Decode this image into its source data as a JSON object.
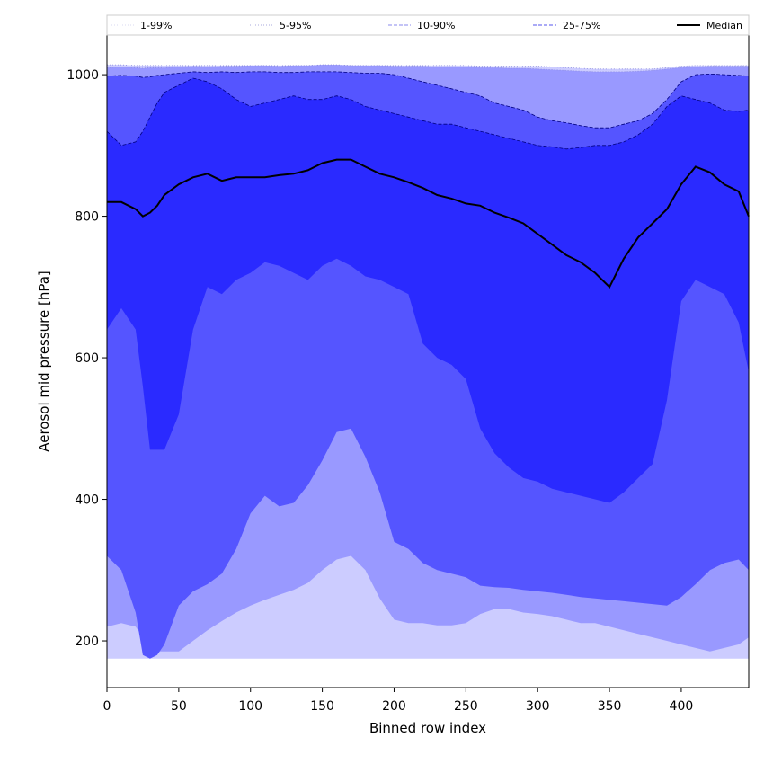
{
  "chart_data": {
    "type": "area",
    "title": "",
    "xlabel": "Binned row index",
    "ylabel": "Aerosol mid pressure [hPa]",
    "xlim": [
      0,
      447
    ],
    "ylim": [
      134,
      1056
    ],
    "xticks": [
      0,
      50,
      100,
      150,
      200,
      250,
      300,
      350,
      400
    ],
    "yticks": [
      200,
      400,
      600,
      800,
      1000
    ],
    "grid": false,
    "legend_position": "top, spanning full width above plot",
    "x": [
      0,
      10,
      20,
      25,
      30,
      35,
      40,
      50,
      60,
      70,
      80,
      90,
      100,
      110,
      120,
      130,
      140,
      150,
      160,
      170,
      180,
      190,
      200,
      210,
      220,
      230,
      240,
      250,
      260,
      270,
      280,
      290,
      300,
      310,
      320,
      330,
      340,
      350,
      360,
      370,
      380,
      390,
      400,
      410,
      420,
      430,
      440,
      447
    ],
    "series": [
      {
        "name": "1-99%",
        "style": "dotted",
        "color": "#ccccff",
        "lower": [
          175,
          175,
          175,
          175,
          175,
          175,
          175,
          175,
          175,
          175,
          175,
          175,
          175,
          175,
          175,
          175,
          175,
          175,
          175,
          175,
          175,
          175,
          175,
          175,
          175,
          175,
          175,
          175,
          175,
          175,
          175,
          175,
          175,
          175,
          175,
          175,
          175,
          175,
          175,
          175,
          175,
          175,
          175,
          175,
          175,
          175,
          175,
          175
        ],
        "upper": [
          1014,
          1014,
          1013,
          1013,
          1013,
          1013,
          1013,
          1013,
          1013,
          1013,
          1013,
          1013,
          1013,
          1013,
          1013,
          1013,
          1013,
          1014,
          1014,
          1013,
          1013,
          1013,
          1013,
          1013,
          1013,
          1013,
          1013,
          1013,
          1012,
          1012,
          1012,
          1012,
          1012,
          1011,
          1010,
          1009,
          1008,
          1008,
          1008,
          1008,
          1008,
          1010,
          1012,
          1013,
          1013,
          1013,
          1013,
          1013
        ]
      },
      {
        "name": "5-95%",
        "style": "dotted",
        "color": "#9999ff",
        "lower": [
          220,
          225,
          220,
          205,
          190,
          185,
          185,
          185,
          200,
          215,
          228,
          240,
          250,
          258,
          265,
          272,
          282,
          300,
          315,
          320,
          300,
          260,
          230,
          225,
          225,
          222,
          222,
          225,
          238,
          245,
          245,
          240,
          238,
          235,
          230,
          225,
          225,
          220,
          215,
          210,
          205,
          200,
          195,
          190,
          185,
          190,
          195,
          205
        ],
        "upper": [
          1010,
          1011,
          1010,
          1009,
          1010,
          1010,
          1010,
          1011,
          1012,
          1011,
          1012,
          1012,
          1013,
          1013,
          1012,
          1013,
          1013,
          1014,
          1014,
          1013,
          1013,
          1013,
          1012,
          1012,
          1012,
          1011,
          1011,
          1011,
          1010,
          1010,
          1009,
          1009,
          1008,
          1007,
          1006,
          1005,
          1004,
          1004,
          1004,
          1005,
          1006,
          1008,
          1010,
          1011,
          1012,
          1012,
          1012,
          1012
        ]
      },
      {
        "name": "10-90%",
        "style": "dashed",
        "color": "#5555ff",
        "lower": [
          320,
          300,
          240,
          180,
          175,
          180,
          195,
          250,
          270,
          280,
          295,
          330,
          380,
          405,
          390,
          395,
          420,
          455,
          495,
          500,
          460,
          410,
          340,
          330,
          310,
          300,
          295,
          290,
          278,
          276,
          275,
          272,
          270,
          268,
          265,
          262,
          260,
          258,
          256,
          254,
          252,
          250,
          262,
          280,
          300,
          310,
          315,
          300
        ],
        "upper": [
          998,
          999,
          998,
          996,
          997,
          999,
          1000,
          1002,
          1004,
          1003,
          1004,
          1003,
          1004,
          1004,
          1003,
          1003,
          1004,
          1004,
          1004,
          1003,
          1002,
          1002,
          1000,
          995,
          990,
          985,
          980,
          975,
          970,
          960,
          955,
          950,
          940,
          935,
          932,
          928,
          925,
          925,
          930,
          935,
          945,
          965,
          990,
          1000,
          1001,
          1000,
          999,
          998
        ]
      },
      {
        "name": "25-75%",
        "style": "dashed",
        "color": "#2a2aff",
        "lower": [
          640,
          670,
          640,
          560,
          470,
          470,
          470,
          520,
          640,
          700,
          690,
          710,
          720,
          735,
          730,
          720,
          710,
          730,
          740,
          730,
          715,
          710,
          700,
          690,
          620,
          600,
          590,
          570,
          500,
          465,
          445,
          430,
          425,
          415,
          410,
          405,
          400,
          395,
          410,
          430,
          450,
          540,
          680,
          710,
          700,
          690,
          650,
          580
        ],
        "upper": [
          920,
          900,
          905,
          920,
          940,
          960,
          975,
          985,
          995,
          990,
          980,
          965,
          955,
          960,
          965,
          970,
          965,
          965,
          970,
          965,
          955,
          950,
          945,
          940,
          935,
          930,
          930,
          925,
          920,
          915,
          910,
          905,
          900,
          898,
          895,
          897,
          900,
          900,
          905,
          915,
          930,
          955,
          970,
          965,
          960,
          950,
          948,
          950
        ]
      },
      {
        "name": "Median",
        "style": "solid",
        "color": "#000000",
        "values": [
          820,
          820,
          810,
          800,
          805,
          815,
          830,
          845,
          855,
          860,
          850,
          855,
          855,
          855,
          858,
          860,
          865,
          875,
          880,
          880,
          870,
          860,
          855,
          848,
          840,
          830,
          825,
          818,
          815,
          805,
          798,
          790,
          775,
          760,
          745,
          735,
          720,
          700,
          740,
          770,
          790,
          810,
          845,
          870,
          862,
          845,
          835,
          800
        ]
      }
    ]
  }
}
